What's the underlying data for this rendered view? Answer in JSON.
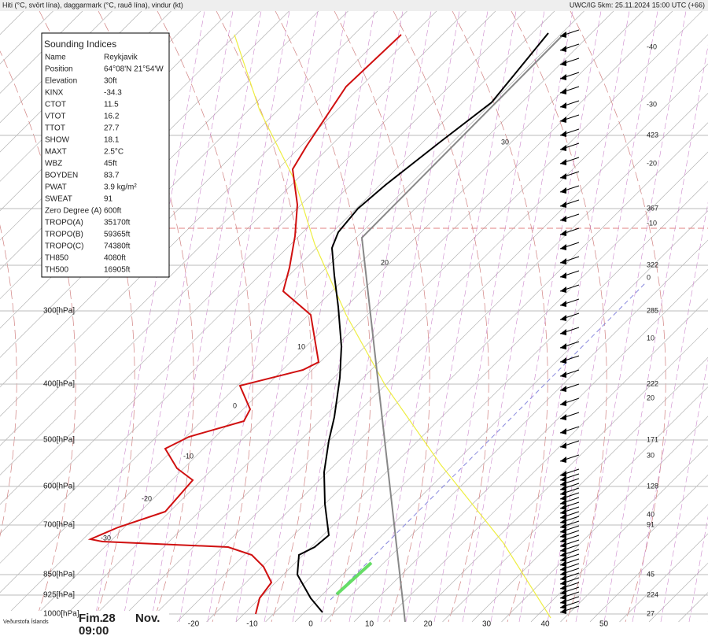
{
  "header": {
    "left": "Hiti (°C, svört lína), daggarmark (°C, rauð lína), vindur (kt)",
    "right": "UWC/IG 5km: 25.11.2024 15:00 UTC (+66)"
  },
  "indices": {
    "title": "Sounding Indices",
    "rows": [
      [
        "Name",
        "Reykjavik"
      ],
      [
        "Position",
        "64°08'N 21°54'W"
      ],
      [
        "Elevation",
        "30ft"
      ],
      [
        "KINX",
        "-34.3"
      ],
      [
        "CTOT",
        "11.5"
      ],
      [
        "VTOT",
        "16.2"
      ],
      [
        "TTOT",
        "27.7"
      ],
      [
        "SHOW",
        "18.1"
      ],
      [
        "MAXT",
        "2.5°C"
      ],
      [
        "WBZ",
        "45ft"
      ],
      [
        "BOYDEN",
        "83.7"
      ],
      [
        "PWAT",
        "3.9 kg/m²"
      ],
      [
        "SWEAT",
        "91"
      ],
      [
        "Zero Degree (A)",
        "600ft"
      ],
      [
        "TROPO(A)",
        "35170ft"
      ],
      [
        "TROPO(B)",
        "59365ft"
      ],
      [
        "TROPO(C)",
        "74380ft"
      ],
      [
        "TH850",
        "4080ft"
      ],
      [
        "TH500",
        "16905ft"
      ]
    ]
  },
  "pressure_labels": [
    "300[hPa]",
    "400[hPa]",
    "500[hPa]",
    "600[hPa]",
    "700[hPa]",
    "850[hPa]",
    "925[hPa]",
    "1000[hPa]"
  ],
  "right_labels": [
    "-40",
    "-30",
    "423",
    "-20",
    "367",
    "-10",
    "322",
    "0",
    "285",
    "10",
    "222",
    "20",
    "171",
    "30",
    "128",
    "40",
    "91",
    "45",
    "224",
    "27"
  ],
  "bottom_labels": [
    "-20",
    "-10",
    "0",
    "10",
    "20",
    "30",
    "40",
    "50"
  ],
  "curve_labels": [
    "30",
    "20",
    "10",
    "0",
    "-10",
    "-20",
    "-30"
  ],
  "footer": {
    "logo": "Veðurstofa Íslands",
    "day": "Fim.",
    "date": "28",
    "month": "Nov.",
    "time": "09:00"
  }
}
